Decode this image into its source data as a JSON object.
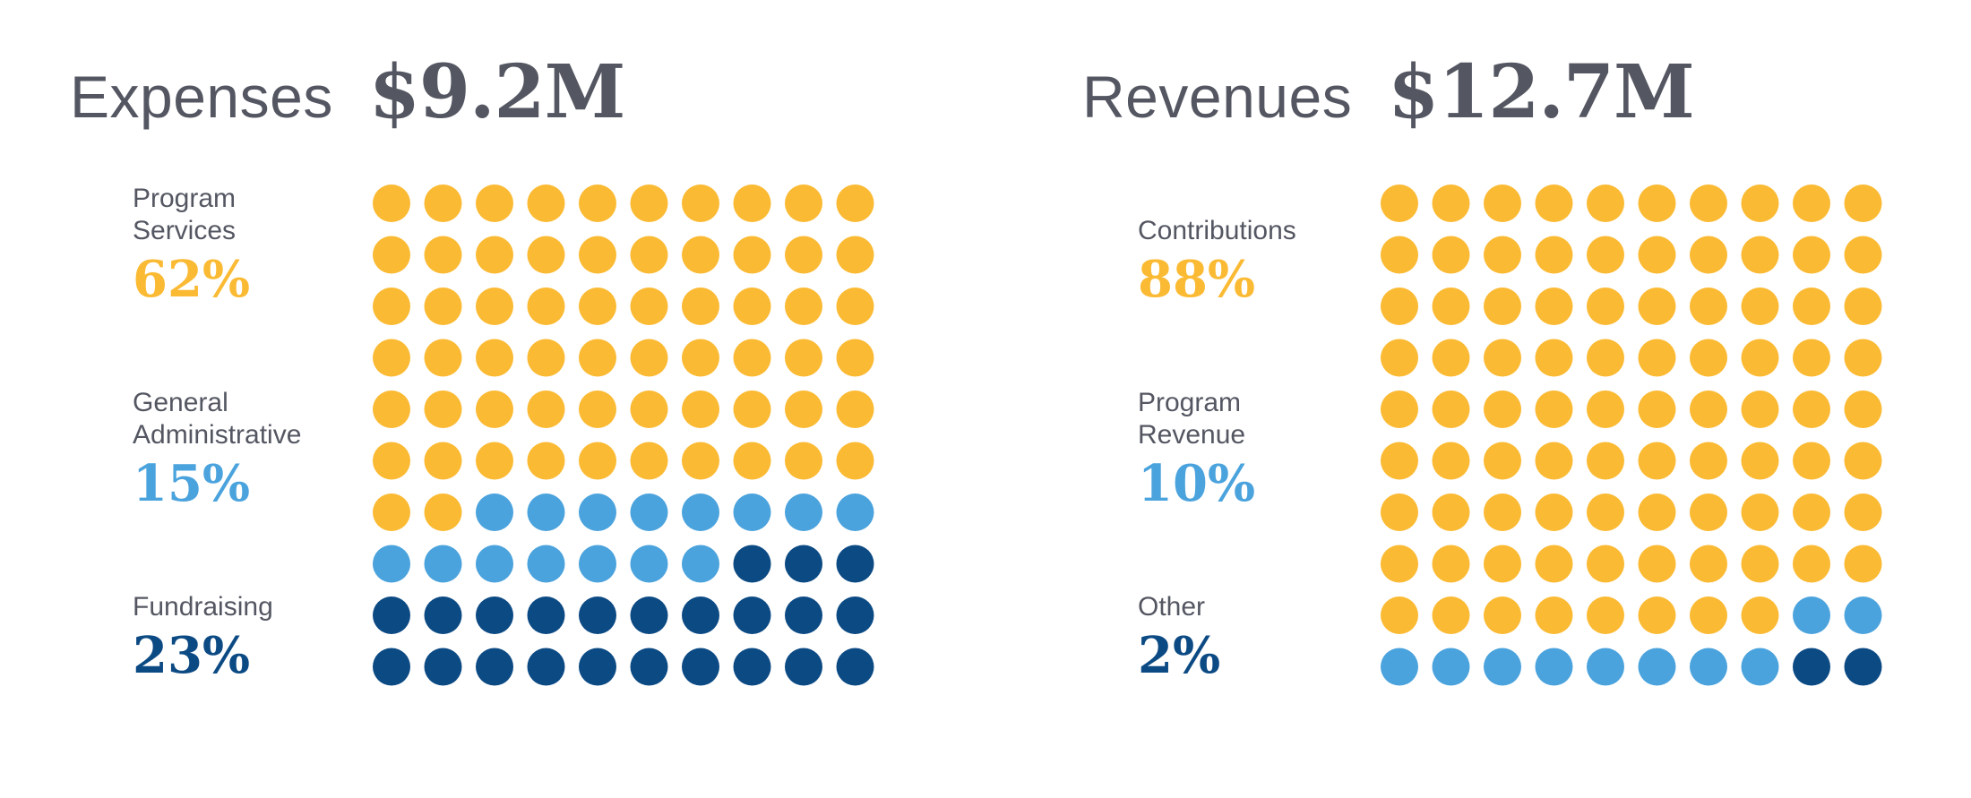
{
  "colors": {
    "gold": "#FBBA33",
    "light_blue": "#4BA3DD",
    "navy": "#0C4A84",
    "text": "#545762"
  },
  "chart_data": [
    {
      "type": "waffle",
      "label": "Expenses",
      "total": "$9.2M",
      "grid": {
        "rows": 10,
        "cols": 10
      },
      "legend": [
        {
          "label": "Program\nServices",
          "value": 62,
          "display": "62%",
          "color": "gold"
        },
        {
          "label": "General\nAdministrative",
          "value": 15,
          "display": "15%",
          "color": "light_blue"
        },
        {
          "label": "Fundraising",
          "value": 23,
          "display": "23%",
          "color": "navy"
        }
      ]
    },
    {
      "type": "waffle",
      "label": "Revenues",
      "total": "$12.7M",
      "grid": {
        "rows": 10,
        "cols": 10
      },
      "legend": [
        {
          "label": "Contributions",
          "value": 88,
          "display": "88%",
          "color": "gold"
        },
        {
          "label": "Program\nRevenue",
          "value": 10,
          "display": "10%",
          "color": "light_blue"
        },
        {
          "label": "Other",
          "value": 2,
          "display": "2%",
          "color": "navy"
        }
      ]
    }
  ]
}
